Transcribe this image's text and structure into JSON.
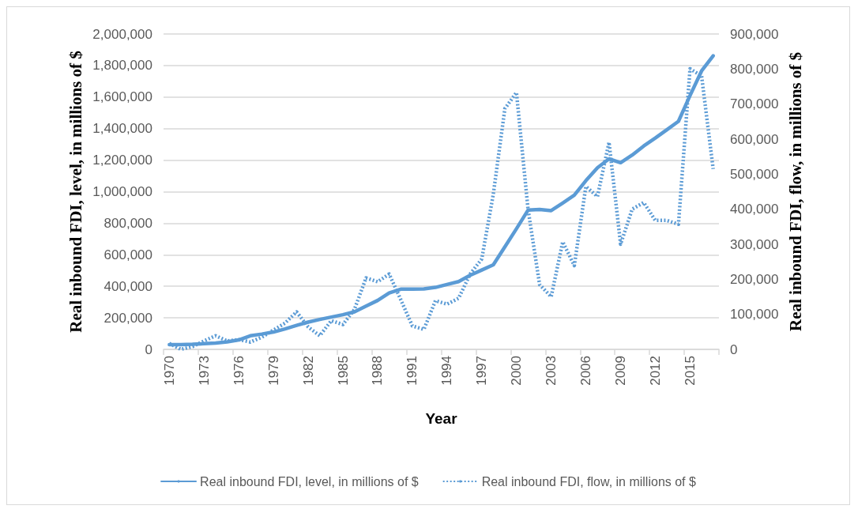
{
  "chart_data": {
    "type": "line",
    "categories": [
      "1970",
      null,
      null,
      "1973",
      null,
      null,
      "1976",
      null,
      null,
      "1979",
      null,
      null,
      "1982",
      null,
      null,
      "1985",
      null,
      null,
      "1988",
      null,
      null,
      "1991",
      null,
      null,
      "1994",
      null,
      null,
      "1997",
      null,
      null,
      "2000",
      null,
      null,
      "2003",
      null,
      null,
      "2006",
      null,
      null,
      "2009",
      null,
      null,
      "2012",
      null,
      null,
      "2015",
      null,
      null
    ],
    "series": [
      {
        "name": "Real inbound FDI, level, in millions of $",
        "color": "#5b9bd5",
        "line_style": "solid",
        "values": [
          30000,
          30000,
          32000,
          36000,
          40000,
          48000,
          60000,
          86000,
          97000,
          110000,
          130000,
          152000,
          173000,
          190000,
          205000,
          220000,
          238000,
          275000,
          310000,
          358000,
          382000,
          382000,
          383000,
          393000,
          412000,
          430000,
          470000,
          503000,
          536000,
          650000,
          765000,
          883000,
          887000,
          880000,
          928000,
          978000,
          1070000,
          1152000,
          1208000,
          1184000,
          1232000,
          1290000,
          1340000,
          1393000,
          1446000,
          1610000,
          1766000,
          1862000
        ]
      },
      {
        "name": "Real inbound FDI, flow, in millions of $",
        "color": "#5b9bd5",
        "line_style": "dotted",
        "axis": "y2",
        "values": [
          17000,
          0,
          8000,
          24000,
          39000,
          24000,
          28000,
          21000,
          35000,
          55000,
          75000,
          107000,
          64000,
          39000,
          82000,
          71000,
          114000,
          204000,
          193000,
          215000,
          142000,
          67000,
          57000,
          139000,
          129000,
          146000,
          215000,
          258000,
          443000,
          687000,
          733000,
          400000,
          185000,
          150000,
          307000,
          239000,
          465000,
          436000,
          591000,
          300000,
          400000,
          419000,
          368000,
          368000,
          357000,
          801000,
          780000,
          515000
        ]
      }
    ],
    "xlabel": "Year",
    "ylabel": "Real inbound FDI, level, in millions of $",
    "y2label": "Real inbound FDI, flow, in millions of $",
    "ylim": [
      0,
      2000000
    ],
    "yticks": [
      0,
      {
        "value": 200000,
        "label": "200,000"
      },
      {
        "value": 400000,
        "label": "400,000"
      },
      {
        "value": 600000,
        "label": "600,000"
      },
      {
        "value": 800000,
        "label": "800,000"
      },
      {
        "value": 1000000,
        "label": "1,000,000"
      },
      {
        "value": 1200000,
        "label": "1,200,000"
      },
      {
        "value": 1400000,
        "label": "1,400,000"
      },
      {
        "value": 1600000,
        "label": "1,600,000"
      },
      {
        "value": 1800000,
        "label": "1,800,000"
      },
      {
        "value": 2000000,
        "label": "2,000,000"
      }
    ],
    "y2lim": [
      0,
      900000
    ],
    "y2ticks": [
      0,
      {
        "value": 100000,
        "label": "100,000"
      },
      {
        "value": 200000,
        "label": "200,000"
      },
      {
        "value": 300000,
        "label": "300,000"
      },
      {
        "value": 400000,
        "label": "400,000"
      },
      {
        "value": 500000,
        "label": "500,000"
      },
      {
        "value": 600000,
        "label": "600,000"
      },
      {
        "value": 700000,
        "label": "700,000"
      },
      {
        "value": 800000,
        "label": "800,000"
      },
      {
        "value": 900000,
        "label": "900,000"
      }
    ],
    "grid": "y",
    "legend": "bottom",
    "marker": "none"
  }
}
